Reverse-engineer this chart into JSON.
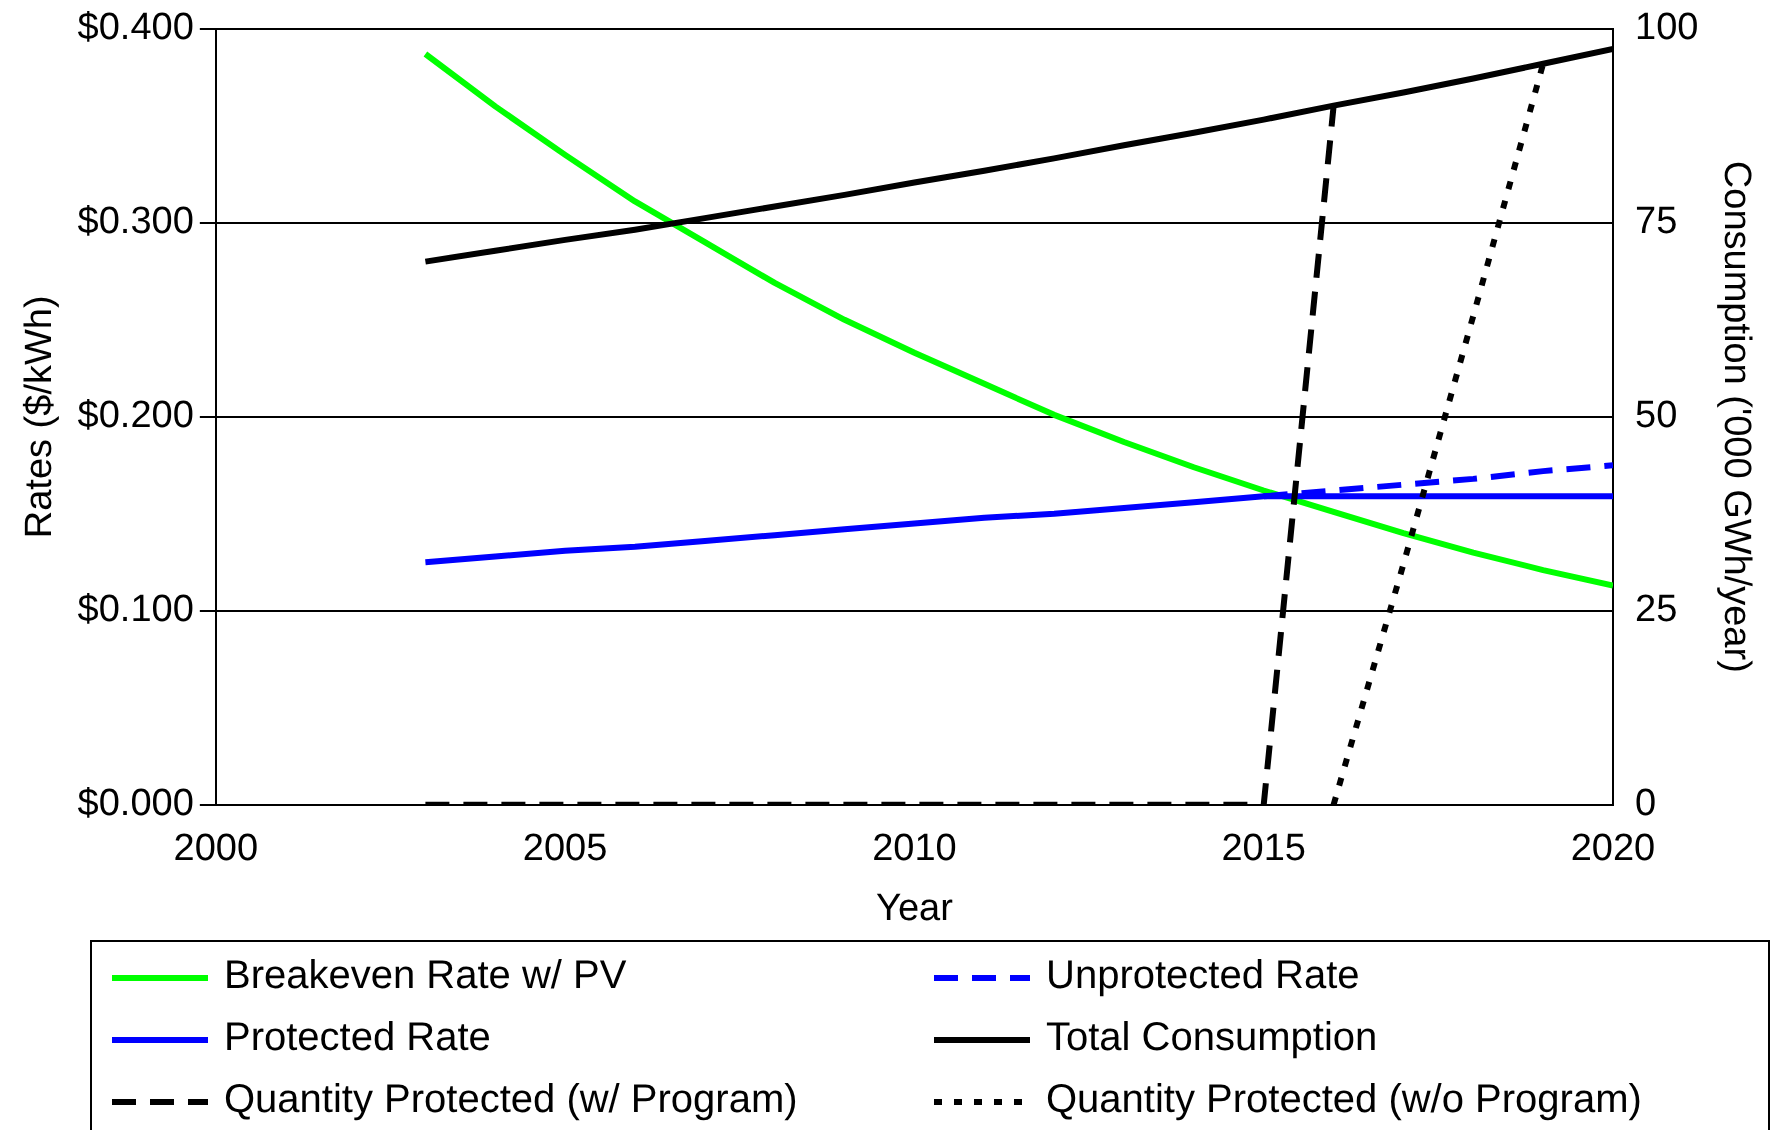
{
  "chart_data": {
    "type": "line",
    "xlabel": "Year",
    "ylabel": "Rates ($/kWh)",
    "y2label": "Consumption ('000 GWh/year)",
    "x": [
      2003,
      2004,
      2005,
      2006,
      2007,
      2008,
      2009,
      2010,
      2011,
      2012,
      2013,
      2014,
      2015,
      2016,
      2017,
      2018,
      2019,
      2020
    ],
    "series": [
      {
        "name": "Breakeven Rate w/ PV",
        "color": "#00ff00",
        "line_style": "solid",
        "values": [
          0.387,
          0.36,
          0.335,
          0.311,
          0.29,
          0.269,
          0.25,
          0.233,
          0.217,
          0.201,
          0.187,
          0.174,
          0.162,
          0.151,
          0.14,
          0.13,
          0.121,
          0.113
        ]
      },
      {
        "name": "Unprotected Rate",
        "color": "#0000ff",
        "line_style": "dashed",
        "values": [
          null,
          null,
          null,
          null,
          null,
          null,
          null,
          null,
          null,
          null,
          null,
          null,
          0.159,
          0.162,
          0.165,
          0.168,
          0.172,
          0.175
        ]
      },
      {
        "name": "Protected Rate",
        "color": "#0000ff",
        "line_style": "solid",
        "values": [
          0.125,
          0.128,
          0.131,
          0.133,
          0.136,
          0.139,
          0.142,
          0.145,
          0.148,
          0.15,
          0.153,
          0.156,
          0.159,
          0.159,
          0.159,
          0.159,
          0.159,
          0.159
        ]
      },
      {
        "name": "Total Consumption",
        "color": "#000000",
        "line_style": "solid",
        "axis": "y2",
        "values": [
          70.0,
          71.4,
          72.8,
          74.1,
          75.6,
          77.1,
          78.6,
          80.2,
          81.7,
          83.3,
          85.0,
          86.6,
          88.3,
          90.1,
          91.8,
          93.6,
          95.5,
          97.4
        ]
      },
      {
        "name": "Quantity Protected (w/ Program)",
        "color": "#000000",
        "line_style": "dashed",
        "axis": "y2",
        "values": [
          0,
          0,
          0,
          0,
          0,
          0,
          0,
          0,
          0,
          0,
          0,
          0,
          0,
          90,
          null,
          null,
          null,
          null
        ]
      },
      {
        "name": "Quantity Protected (w/o Program)",
        "color": "#000000",
        "line_style": "dotted",
        "axis": "y2",
        "values": [
          null,
          null,
          null,
          null,
          null,
          null,
          null,
          null,
          null,
          null,
          null,
          null,
          null,
          0,
          31,
          63,
          95.5,
          null
        ]
      }
    ],
    "xlim": [
      2000,
      2020
    ],
    "xticks": [
      2000,
      2005,
      2010,
      2015,
      2020
    ],
    "ylim": [
      0,
      0.4
    ],
    "yticks": [
      {
        "value": 0,
        "label": "$0.000"
      },
      {
        "value": 0.1,
        "label": "$0.100"
      },
      {
        "value": 0.2,
        "label": "$0.200"
      },
      {
        "value": 0.3,
        "label": "$0.300"
      },
      {
        "value": 0.4,
        "label": "$0.400"
      }
    ],
    "y2lim": [
      0,
      100
    ],
    "y2ticks": [
      0,
      25,
      50,
      75,
      100
    ],
    "grid": "y",
    "legend": "bottom",
    "marker": "none"
  }
}
